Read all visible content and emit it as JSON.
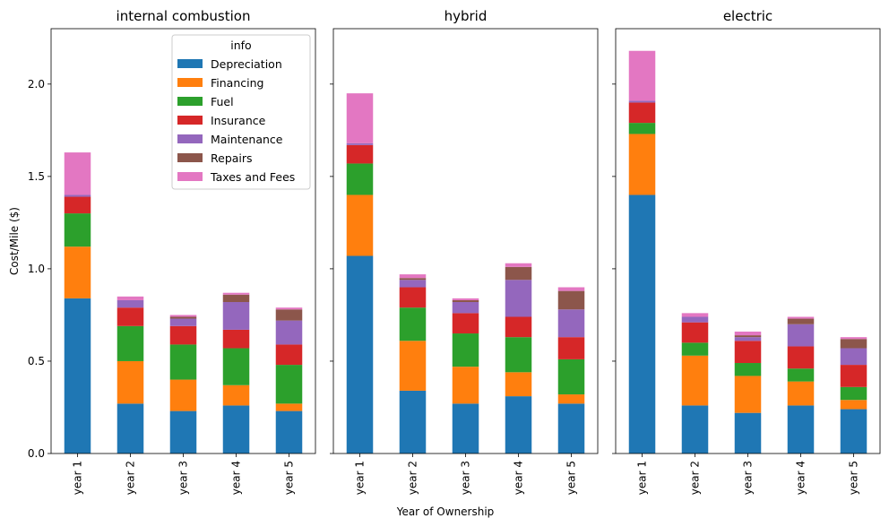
{
  "chart_data": {
    "type": "bar",
    "stacked": true,
    "ylabel": "Cost/Mile ($)",
    "xlabel": "Year of Ownership",
    "ylim": [
      0,
      2.3
    ],
    "yticks": [
      "0.0",
      "0.5",
      "1.0",
      "1.5",
      "2.0"
    ],
    "categories": [
      "year 1",
      "year 2",
      "year 3",
      "year 4",
      "year 5"
    ],
    "legend": {
      "title": "info",
      "placement": "top-right of first panel",
      "entries": [
        "Depreciation",
        "Financing",
        "Fuel",
        "Insurance",
        "Maintenance",
        "Repairs",
        "Taxes and Fees"
      ]
    },
    "colors": {
      "Depreciation": "#1f77b4",
      "Financing": "#ff7f0e",
      "Fuel": "#2ca02c",
      "Insurance": "#d62728",
      "Maintenance": "#9467bd",
      "Repairs": "#8c564b",
      "Taxes and Fees": "#e377c2"
    },
    "panels": [
      {
        "title": "internal combustion",
        "series": [
          {
            "name": "Depreciation",
            "values": [
              0.84,
              0.27,
              0.23,
              0.26,
              0.23
            ]
          },
          {
            "name": "Financing",
            "values": [
              0.28,
              0.23,
              0.17,
              0.11,
              0.04
            ]
          },
          {
            "name": "Fuel",
            "values": [
              0.18,
              0.19,
              0.19,
              0.2,
              0.21
            ]
          },
          {
            "name": "Insurance",
            "values": [
              0.09,
              0.1,
              0.1,
              0.1,
              0.11
            ]
          },
          {
            "name": "Maintenance",
            "values": [
              0.01,
              0.04,
              0.04,
              0.15,
              0.13
            ]
          },
          {
            "name": "Repairs",
            "values": [
              0.0,
              0.0,
              0.01,
              0.04,
              0.06
            ]
          },
          {
            "name": "Taxes and Fees",
            "values": [
              0.23,
              0.02,
              0.01,
              0.01,
              0.01
            ]
          }
        ]
      },
      {
        "title": "hybrid",
        "series": [
          {
            "name": "Depreciation",
            "values": [
              1.07,
              0.34,
              0.27,
              0.31,
              0.27
            ]
          },
          {
            "name": "Financing",
            "values": [
              0.33,
              0.27,
              0.2,
              0.13,
              0.05
            ]
          },
          {
            "name": "Fuel",
            "values": [
              0.17,
              0.18,
              0.18,
              0.19,
              0.19
            ]
          },
          {
            "name": "Insurance",
            "values": [
              0.1,
              0.11,
              0.11,
              0.11,
              0.12
            ]
          },
          {
            "name": "Maintenance",
            "values": [
              0.01,
              0.04,
              0.06,
              0.2,
              0.15
            ]
          },
          {
            "name": "Repairs",
            "values": [
              0.0,
              0.01,
              0.01,
              0.07,
              0.1
            ]
          },
          {
            "name": "Taxes and Fees",
            "values": [
              0.27,
              0.02,
              0.01,
              0.02,
              0.02
            ]
          }
        ]
      },
      {
        "title": "electric",
        "series": [
          {
            "name": "Depreciation",
            "values": [
              1.4,
              0.26,
              0.22,
              0.26,
              0.24
            ]
          },
          {
            "name": "Financing",
            "values": [
              0.33,
              0.27,
              0.2,
              0.13,
              0.05
            ]
          },
          {
            "name": "Fuel",
            "values": [
              0.06,
              0.07,
              0.07,
              0.07,
              0.07
            ]
          },
          {
            "name": "Insurance",
            "values": [
              0.11,
              0.11,
              0.12,
              0.12,
              0.12
            ]
          },
          {
            "name": "Maintenance",
            "values": [
              0.01,
              0.03,
              0.02,
              0.12,
              0.09
            ]
          },
          {
            "name": "Repairs",
            "values": [
              0.0,
              0.0,
              0.01,
              0.03,
              0.05
            ]
          },
          {
            "name": "Taxes and Fees",
            "values": [
              0.27,
              0.02,
              0.02,
              0.01,
              0.01
            ]
          }
        ]
      }
    ]
  }
}
